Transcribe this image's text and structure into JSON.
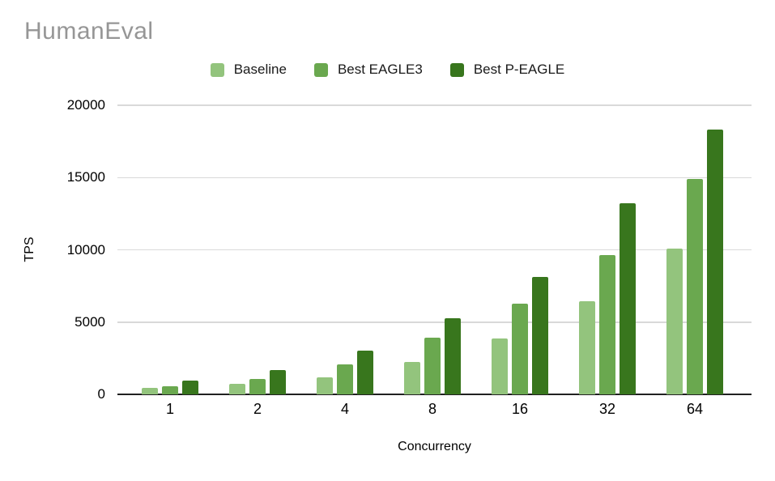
{
  "page": {
    "background": "#ffffff"
  },
  "header": {
    "title": "HumanEval",
    "title_color": "#969696"
  },
  "legend": {
    "position": "top",
    "items": [
      {
        "label": "Baseline",
        "color": "#93c47d"
      },
      {
        "label": "Best EAGLE3",
        "color": "#6aa84f"
      },
      {
        "label": "Best P-EAGLE",
        "color": "#38761d"
      }
    ]
  },
  "axes": {
    "x_title": "Concurrency",
    "y_title": "TPS",
    "gridline_color": "#d9d9d9",
    "baseline_color": "#212121"
  },
  "chart_data": {
    "type": "bar",
    "title": "HumanEval",
    "xlabel": "Concurrency",
    "ylabel": "TPS",
    "categories": [
      "1",
      "2",
      "4",
      "8",
      "16",
      "32",
      "64"
    ],
    "series": [
      {
        "name": "Baseline",
        "color": "#93c47d",
        "values": [
          450,
          750,
          1200,
          2250,
          3850,
          6450,
          10100
        ]
      },
      {
        "name": "Best EAGLE3",
        "color": "#6aa84f",
        "values": [
          550,
          1050,
          2050,
          3900,
          6300,
          9650,
          14900
        ]
      },
      {
        "name": "Best P-EAGLE",
        "color": "#38761d",
        "values": [
          950,
          1700,
          3050,
          5250,
          8150,
          13250,
          18300
        ]
      }
    ],
    "ylim": [
      0,
      20000
    ],
    "yticks": [
      0,
      5000,
      10000,
      15000,
      20000
    ],
    "grid": true,
    "legend_position": "top"
  }
}
